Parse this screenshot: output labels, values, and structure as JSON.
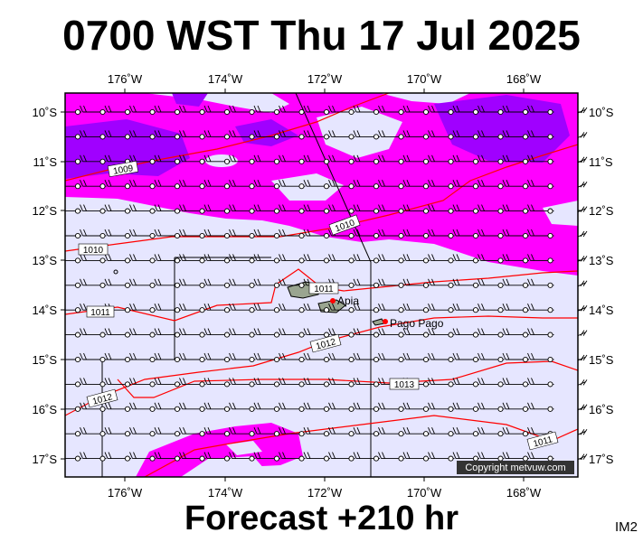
{
  "header": {
    "title": "0700 WST Thu 17 Jul 2025"
  },
  "footer": {
    "forecast": "Forecast +210 hr",
    "image_tag": "IM2"
  },
  "map": {
    "lon_labels": [
      "176˚W",
      "174˚W",
      "172˚W",
      "170˚W",
      "168˚W"
    ],
    "lat_labels": [
      "10˚S",
      "11˚S",
      "12˚S",
      "13˚S",
      "14˚S",
      "15˚S",
      "16˚S",
      "17˚S"
    ],
    "isobar_labels": [
      "1009",
      "1010",
      "1010",
      "1011",
      "1011",
      "1012",
      "1012",
      "1013",
      "1011"
    ],
    "cities": [
      "Apia",
      "Pago Pago"
    ],
    "copyright": "Copyright metvuw.com",
    "colors": {
      "rain_light": "#e6e6ff",
      "rain_medium": "#ff00ff",
      "rain_heavy": "#a000ff",
      "isobar": "#ff0000",
      "city_marker": "#ff0000",
      "land": "#9aa590"
    }
  }
}
